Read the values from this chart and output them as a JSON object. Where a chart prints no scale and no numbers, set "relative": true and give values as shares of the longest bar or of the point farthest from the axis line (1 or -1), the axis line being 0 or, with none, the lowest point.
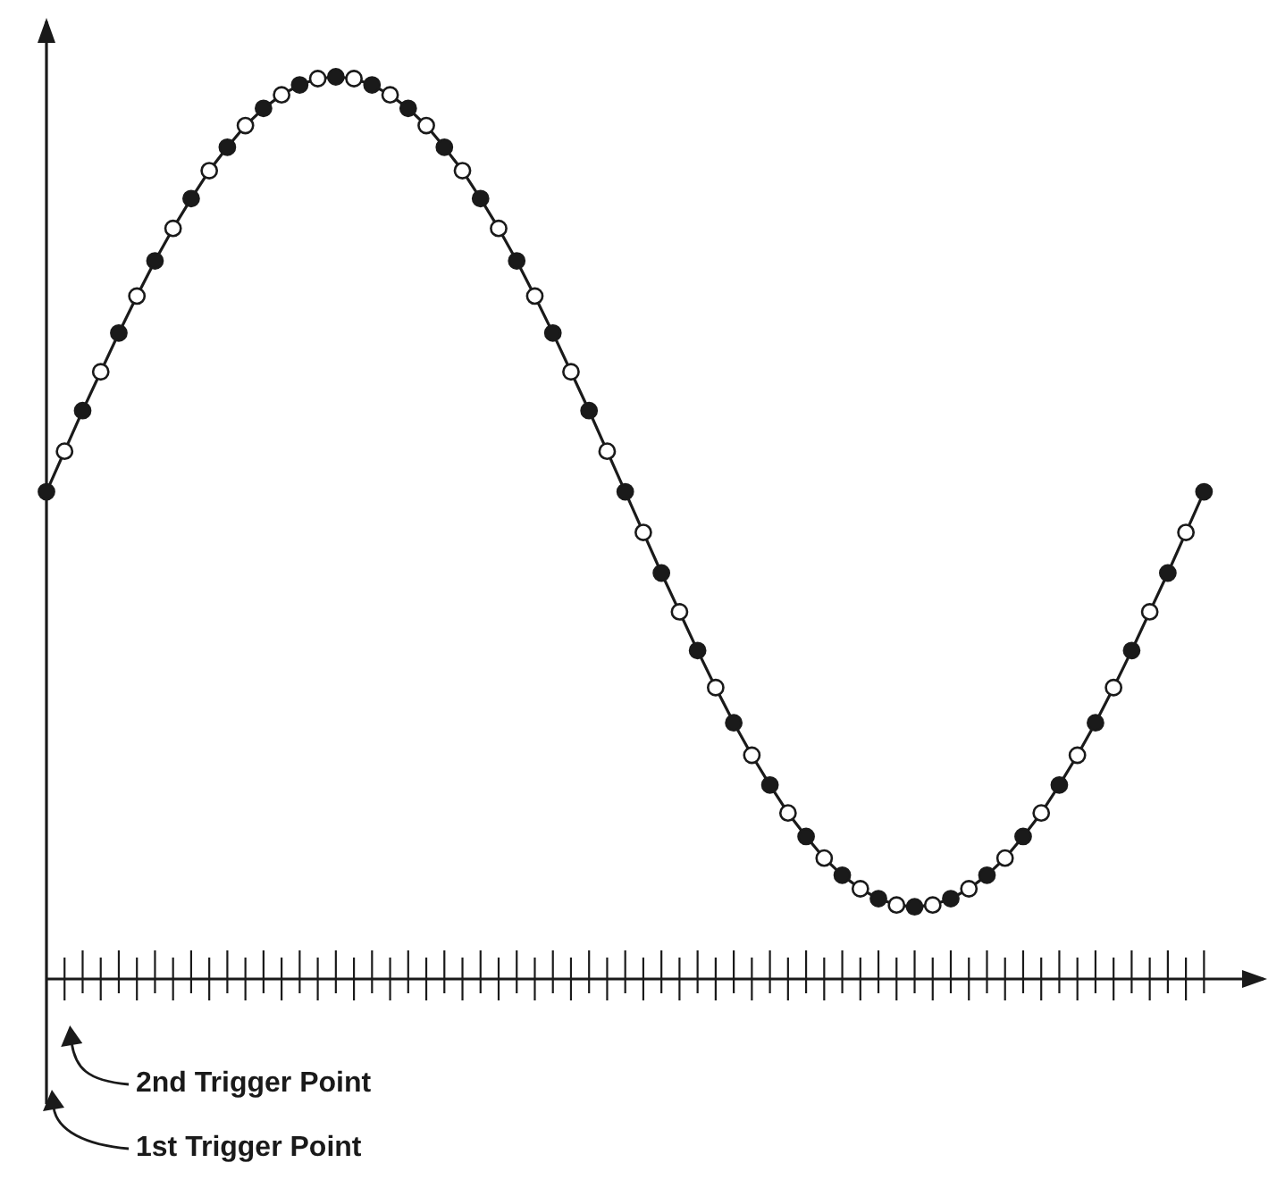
{
  "chart_data": {
    "type": "line",
    "relative": true,
    "marker": "circle",
    "line_style": "solid",
    "categories": [
      null,
      null,
      null,
      null,
      null,
      null,
      null,
      null,
      null,
      null,
      null,
      null,
      null,
      null,
      null,
      null,
      null,
      null,
      null,
      null,
      null,
      null,
      null,
      null,
      null,
      null,
      null,
      null,
      null,
      null,
      null,
      null,
      null,
      null,
      null,
      null,
      null,
      null,
      null,
      null,
      null,
      null,
      null,
      null,
      null,
      null,
      null,
      null,
      null,
      null,
      null,
      null,
      null,
      null,
      null,
      null,
      null,
      null,
      null,
      null,
      null,
      null,
      null,
      null,
      null
    ],
    "series": [
      {
        "color": "#1a1a1a",
        "values": [
          0.54,
          0.585,
          0.63,
          0.673,
          0.716,
          0.757,
          0.796,
          0.832,
          0.865,
          0.896,
          0.922,
          0.946,
          0.965,
          0.98,
          0.991,
          0.998,
          1.0,
          0.998,
          0.991,
          0.98,
          0.965,
          0.946,
          0.922,
          0.896,
          0.865,
          0.832,
          0.796,
          0.757,
          0.716,
          0.673,
          0.63,
          0.585,
          0.54,
          0.495,
          0.45,
          0.407,
          0.364,
          0.323,
          0.284,
          0.248,
          0.215,
          0.184,
          0.158,
          0.134,
          0.115,
          0.1,
          0.089,
          0.082,
          0.08,
          0.082,
          0.089,
          0.1,
          0.115,
          0.134,
          0.158,
          0.184,
          0.215,
          0.248,
          0.284,
          0.323,
          0.364,
          0.407,
          0.45,
          0.495,
          0.54
        ],
        "colors": [
          "#1a1a1a",
          "#ffffff",
          "#1a1a1a",
          "#ffffff",
          "#1a1a1a",
          "#ffffff",
          "#1a1a1a",
          "#ffffff",
          "#1a1a1a",
          "#ffffff",
          "#1a1a1a",
          "#ffffff",
          "#1a1a1a",
          "#ffffff",
          "#1a1a1a",
          "#ffffff",
          "#1a1a1a",
          "#ffffff",
          "#1a1a1a",
          "#ffffff",
          "#1a1a1a",
          "#ffffff",
          "#1a1a1a",
          "#ffffff",
          "#1a1a1a",
          "#ffffff",
          "#1a1a1a",
          "#ffffff",
          "#1a1a1a",
          "#ffffff",
          "#1a1a1a",
          "#ffffff",
          "#1a1a1a",
          "#ffffff",
          "#1a1a1a",
          "#ffffff",
          "#1a1a1a",
          "#ffffff",
          "#1a1a1a",
          "#ffffff",
          "#1a1a1a",
          "#ffffff",
          "#1a1a1a",
          "#ffffff",
          "#1a1a1a",
          "#ffffff",
          "#1a1a1a",
          "#ffffff",
          "#1a1a1a",
          "#ffffff",
          "#1a1a1a",
          "#ffffff",
          "#1a1a1a",
          "#ffffff",
          "#1a1a1a",
          "#ffffff",
          "#1a1a1a",
          "#ffffff",
          "#1a1a1a",
          "#ffffff",
          "#1a1a1a",
          "#ffffff",
          "#1a1a1a",
          "#ffffff",
          "#1a1a1a"
        ]
      }
    ],
    "annotations": [
      "2nd Trigger Point",
      "1st Trigger Point"
    ]
  }
}
